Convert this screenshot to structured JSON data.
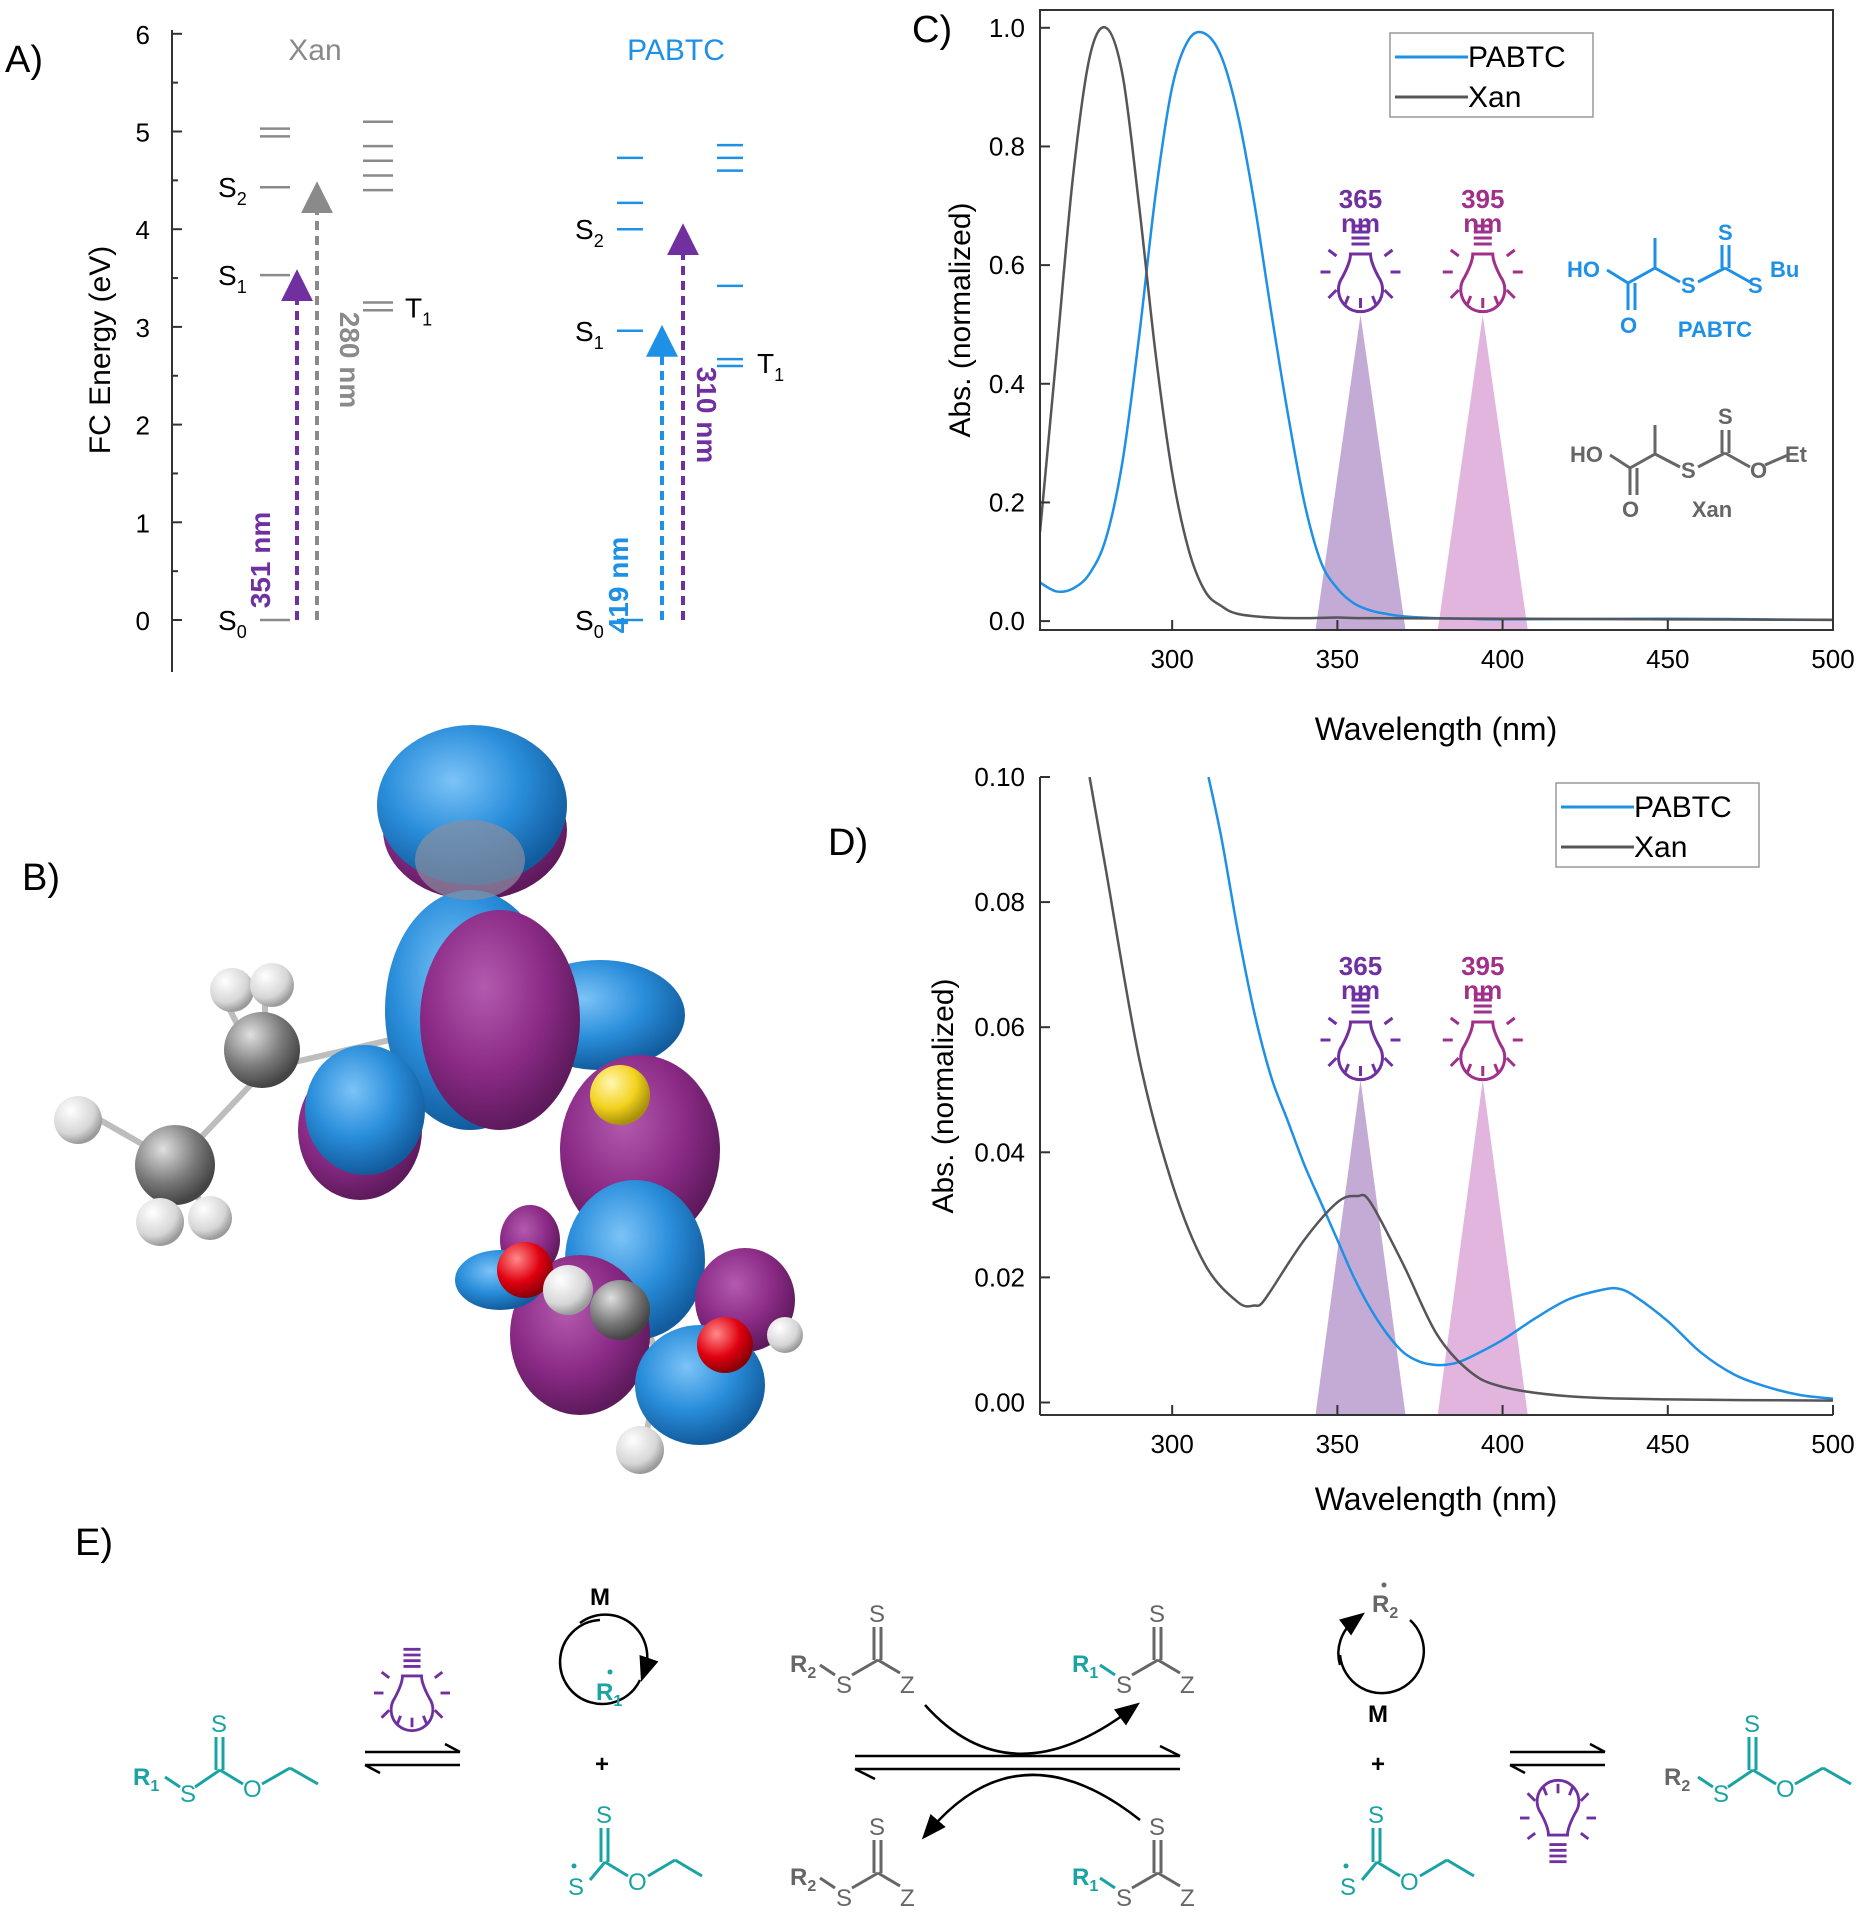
{
  "colors": {
    "pabtc": "#1E90E6",
    "xan": "#55555A",
    "xan_level": "#8A8A8A",
    "purple": "#7030A0",
    "magenta": "#A0308A",
    "teal": "#1AA3A3",
    "grey_struct": "#666666",
    "cone365": "#B89CCF",
    "cone395": "#DDA8D8"
  },
  "panels": {
    "A": "A)",
    "B": "B)",
    "C": "C)",
    "D": "D)",
    "E": "E)"
  },
  "chart_data": [
    {
      "panel": "A",
      "type": "diagram",
      "ylabel": "FC Energy (eV)",
      "ylim": [
        -0.5,
        6
      ],
      "yticks": [
        "0",
        "1",
        "2",
        "3",
        "4",
        "5",
        "6"
      ],
      "groups": [
        {
          "name": "Xan",
          "singlets": [
            0,
            3.53,
            4.43,
            4.95,
            5.03
          ],
          "triplets": [
            3.17,
            3.25,
            4.4,
            4.55,
            4.7,
            4.85,
            5.1
          ],
          "state_labels": {
            "S0": 0,
            "S1": 3.53,
            "S2": 4.43,
            "T1": 3.2
          },
          "transitions": [
            {
              "label": "351 nm",
              "energy": 3.53
            },
            {
              "label": "280 nm",
              "energy": 4.43
            }
          ]
        },
        {
          "name": "PABTC",
          "singlets": [
            0,
            2.96,
            4.0,
            4.27,
            4.73
          ],
          "triplets": [
            2.6,
            2.67,
            3.42,
            4.6,
            4.73,
            4.86
          ],
          "state_labels": {
            "S0": 0,
            "S1": 2.96,
            "S2": 4.0,
            "T1": 2.63
          },
          "transitions": [
            {
              "label": "419 nm",
              "energy": 2.96
            },
            {
              "label": "310 nm",
              "energy": 4.0
            }
          ]
        }
      ]
    },
    {
      "panel": "C",
      "type": "line",
      "xlabel": "Wavelength (nm)",
      "ylabel": "Abs. (normalized)",
      "xlim": [
        260,
        500
      ],
      "ylim": [
        -0.015,
        1.03
      ],
      "xticks": [
        "300",
        "350",
        "400",
        "450",
        "500"
      ],
      "yticks": [
        "0.0",
        "0.2",
        "0.4",
        "0.6",
        "0.8",
        "1.0"
      ],
      "legend": "top-center",
      "series": [
        {
          "name": "PABTC",
          "x": [
            260,
            265,
            270,
            275,
            280,
            285,
            290,
            295,
            300,
            305,
            310,
            315,
            320,
            325,
            330,
            335,
            340,
            345,
            350,
            355,
            360,
            365,
            370,
            380,
            390,
            400,
            450,
            500
          ],
          "y": [
            0.065,
            0.05,
            0.055,
            0.08,
            0.14,
            0.27,
            0.48,
            0.72,
            0.9,
            0.98,
            0.99,
            0.95,
            0.85,
            0.7,
            0.52,
            0.35,
            0.2,
            0.1,
            0.055,
            0.03,
            0.018,
            0.012,
            0.008,
            0.005,
            0.004,
            0.003,
            0.004,
            0.002
          ]
        },
        {
          "name": "Xan",
          "x": [
            260,
            265,
            270,
            275,
            280,
            285,
            290,
            295,
            300,
            305,
            310,
            315,
            320,
            330,
            340,
            350,
            360,
            400,
            450,
            500
          ],
          "y": [
            0.15,
            0.45,
            0.75,
            0.95,
            1.0,
            0.92,
            0.7,
            0.45,
            0.25,
            0.12,
            0.05,
            0.025,
            0.012,
            0.006,
            0.005,
            0.006,
            0.005,
            0.004,
            0.003,
            0.002
          ]
        }
      ],
      "lamps": [
        {
          "label": "365",
          "unit": "nm",
          "center": 357
        },
        {
          "label": "395",
          "unit": "nm",
          "center": 394
        }
      ],
      "structures": [
        {
          "name": "PABTC",
          "groups": [
            "HO",
            "S",
            "S",
            "Bu",
            "O",
            "S"
          ]
        },
        {
          "name": "Xan",
          "groups": [
            "HO",
            "S",
            "O",
            "Et",
            "O",
            "S"
          ]
        }
      ]
    },
    {
      "panel": "D",
      "type": "line",
      "xlabel": "Wavelength (nm)",
      "ylabel": "Abs. (normalized)",
      "xlim": [
        260,
        500
      ],
      "ylim": [
        -0.002,
        0.1
      ],
      "xticks": [
        "300",
        "350",
        "400",
        "450",
        "500"
      ],
      "yticks": [
        "0.00",
        "0.02",
        "0.04",
        "0.06",
        "0.08",
        "0.10"
      ],
      "legend": "top-right",
      "series": [
        {
          "name": "PABTC",
          "x": [
            311,
            315,
            320,
            325,
            330,
            335,
            340,
            345,
            350,
            355,
            360,
            365,
            370,
            375,
            380,
            385,
            390,
            400,
            410,
            420,
            430,
            435,
            440,
            450,
            460,
            470,
            480,
            490,
            500
          ],
          "y": [
            0.1,
            0.09,
            0.075,
            0.062,
            0.052,
            0.045,
            0.038,
            0.032,
            0.026,
            0.02,
            0.015,
            0.011,
            0.008,
            0.0065,
            0.006,
            0.0062,
            0.0072,
            0.01,
            0.0135,
            0.0165,
            0.018,
            0.0182,
            0.017,
            0.013,
            0.008,
            0.0045,
            0.0025,
            0.0012,
            0.0006
          ]
        },
        {
          "name": "Xan",
          "x": [
            275,
            280,
            290,
            300,
            310,
            320,
            325,
            327,
            330,
            340,
            350,
            356,
            360,
            370,
            380,
            390,
            400,
            420,
            450,
            500
          ],
          "y": [
            0.1,
            0.085,
            0.055,
            0.035,
            0.022,
            0.016,
            0.0155,
            0.0158,
            0.018,
            0.026,
            0.032,
            0.033,
            0.032,
            0.022,
            0.011,
            0.005,
            0.0025,
            0.001,
            0.0005,
            0.0003
          ]
        }
      ],
      "lamps": [
        {
          "label": "365",
          "unit": "nm",
          "center": 357
        },
        {
          "label": "395",
          "unit": "nm",
          "center": 394
        }
      ]
    }
  ],
  "scheme": {
    "left_sm": {
      "r": "R",
      "sub": "1",
      "atoms": [
        "S",
        "S",
        "O"
      ]
    },
    "radical_r1": {
      "r": "R",
      "sub": "1",
      "monomer": "M"
    },
    "plus_sign": "+",
    "xanthyl_radical_atoms": [
      "S",
      "S",
      "O"
    ],
    "top_left": {
      "r": "R",
      "sub": "2",
      "atoms": [
        "S",
        "S",
        "Z"
      ]
    },
    "top_right": {
      "r": "R",
      "sub": "1",
      "atoms": [
        "S",
        "S",
        "Z"
      ]
    },
    "bottom_left": {
      "r": "R",
      "sub": "2",
      "atoms": [
        "S",
        "S",
        "Z"
      ]
    },
    "bottom_right": {
      "r": "R",
      "sub": "1",
      "atoms": [
        "S",
        "S",
        "Z"
      ]
    },
    "radical_r2": {
      "r": "R",
      "sub": "2",
      "monomer": "M"
    },
    "right_prod": {
      "r": "R",
      "sub": "2",
      "atoms": [
        "S",
        "S",
        "O"
      ]
    },
    "right_xanthyl_atoms": [
      "S",
      "S",
      "O"
    ]
  }
}
